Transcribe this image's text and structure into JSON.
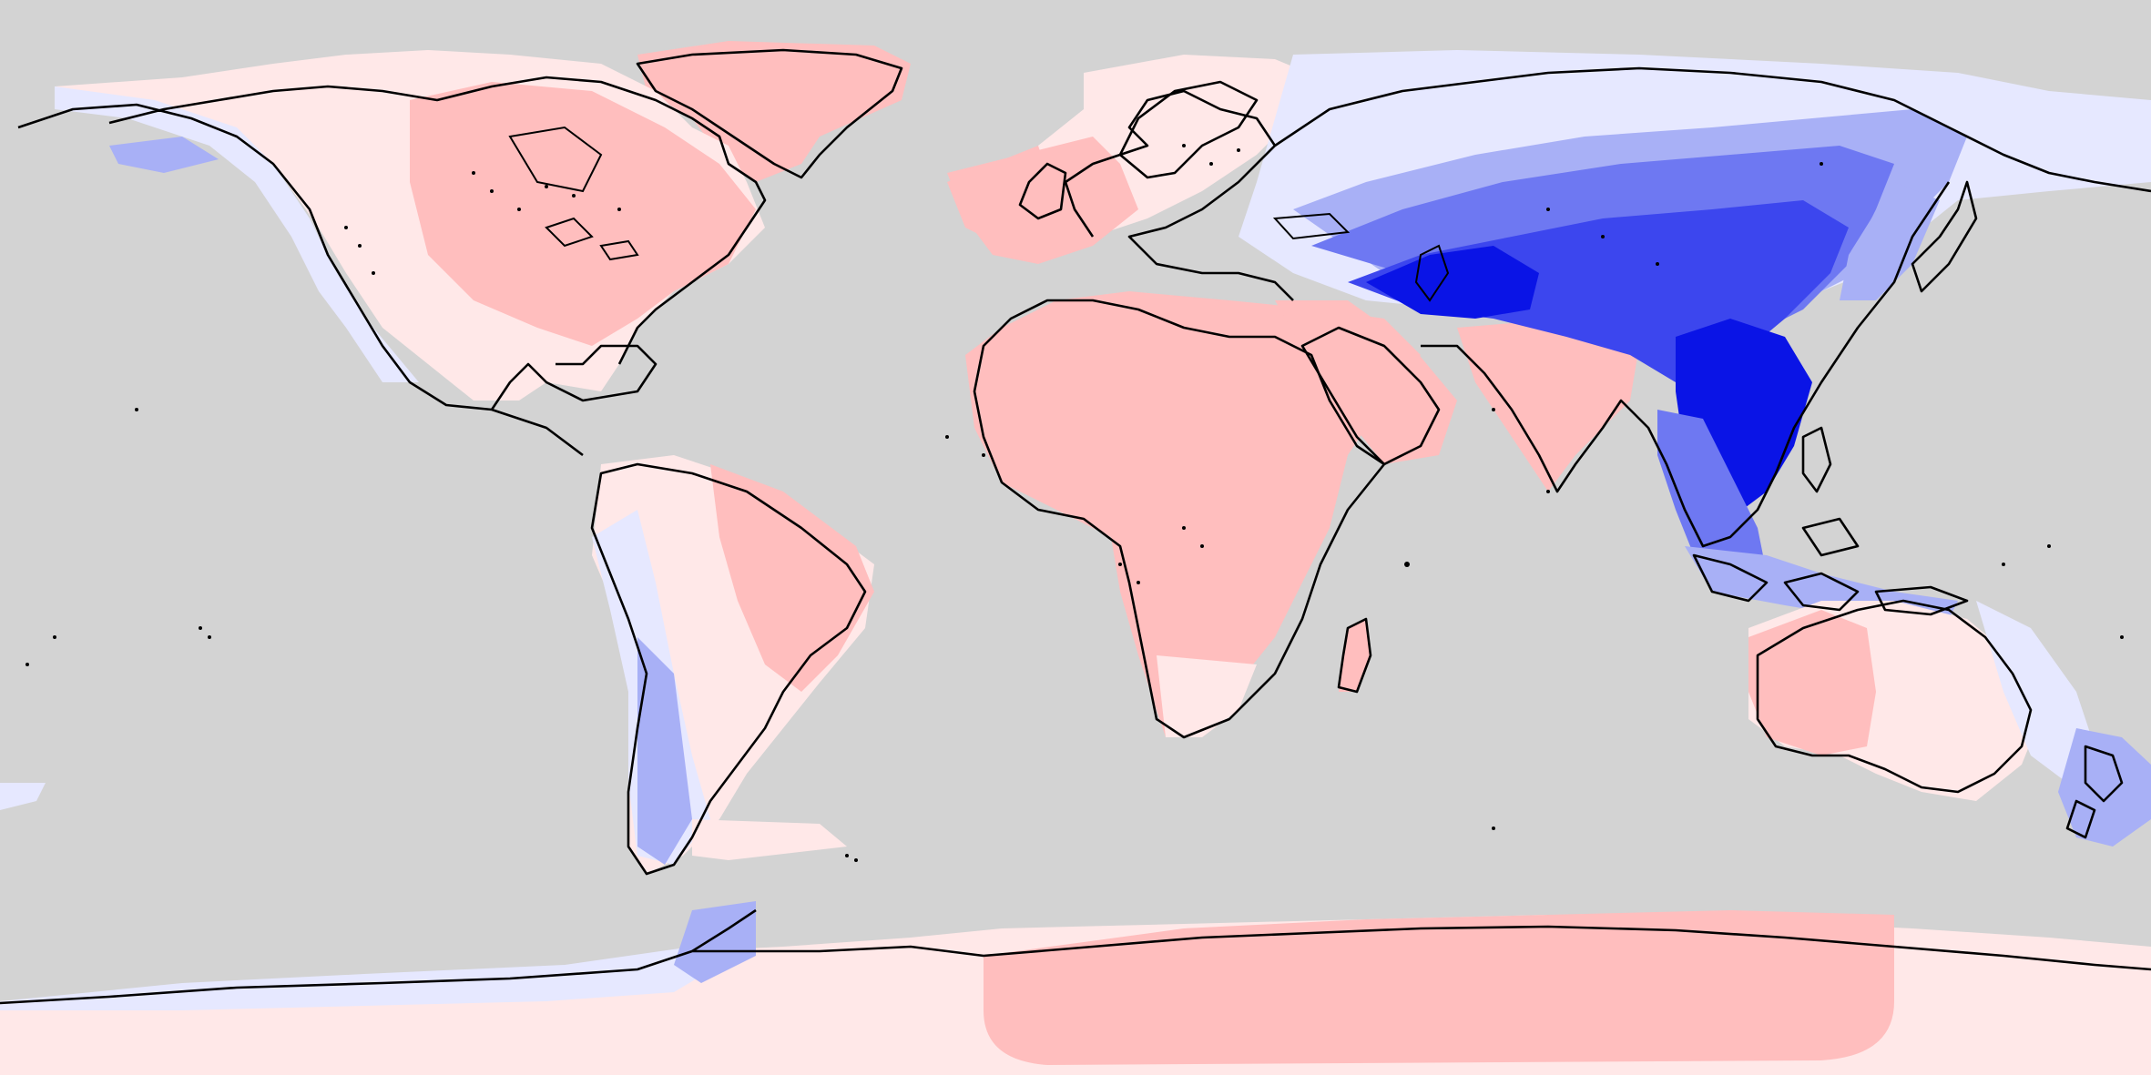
{
  "map": {
    "projection": "equirectangular",
    "background_color": "#d3d3d3",
    "coastline_color": "#000000",
    "legend": "none",
    "color_scale": {
      "type": "diverging",
      "levels": [
        {
          "name": "strong-negative",
          "color": "#0a14e6"
        },
        {
          "name": "negative-4",
          "color": "#3c46ee"
        },
        {
          "name": "negative-3",
          "color": "#6e78f2"
        },
        {
          "name": "negative-2",
          "color": "#a8b0f6"
        },
        {
          "name": "negative-1",
          "color": "#e6e8ff"
        },
        {
          "name": "near-zero-positive",
          "color": "#ffe8e8"
        },
        {
          "name": "positive",
          "color": "#ffbebe"
        }
      ]
    }
  }
}
